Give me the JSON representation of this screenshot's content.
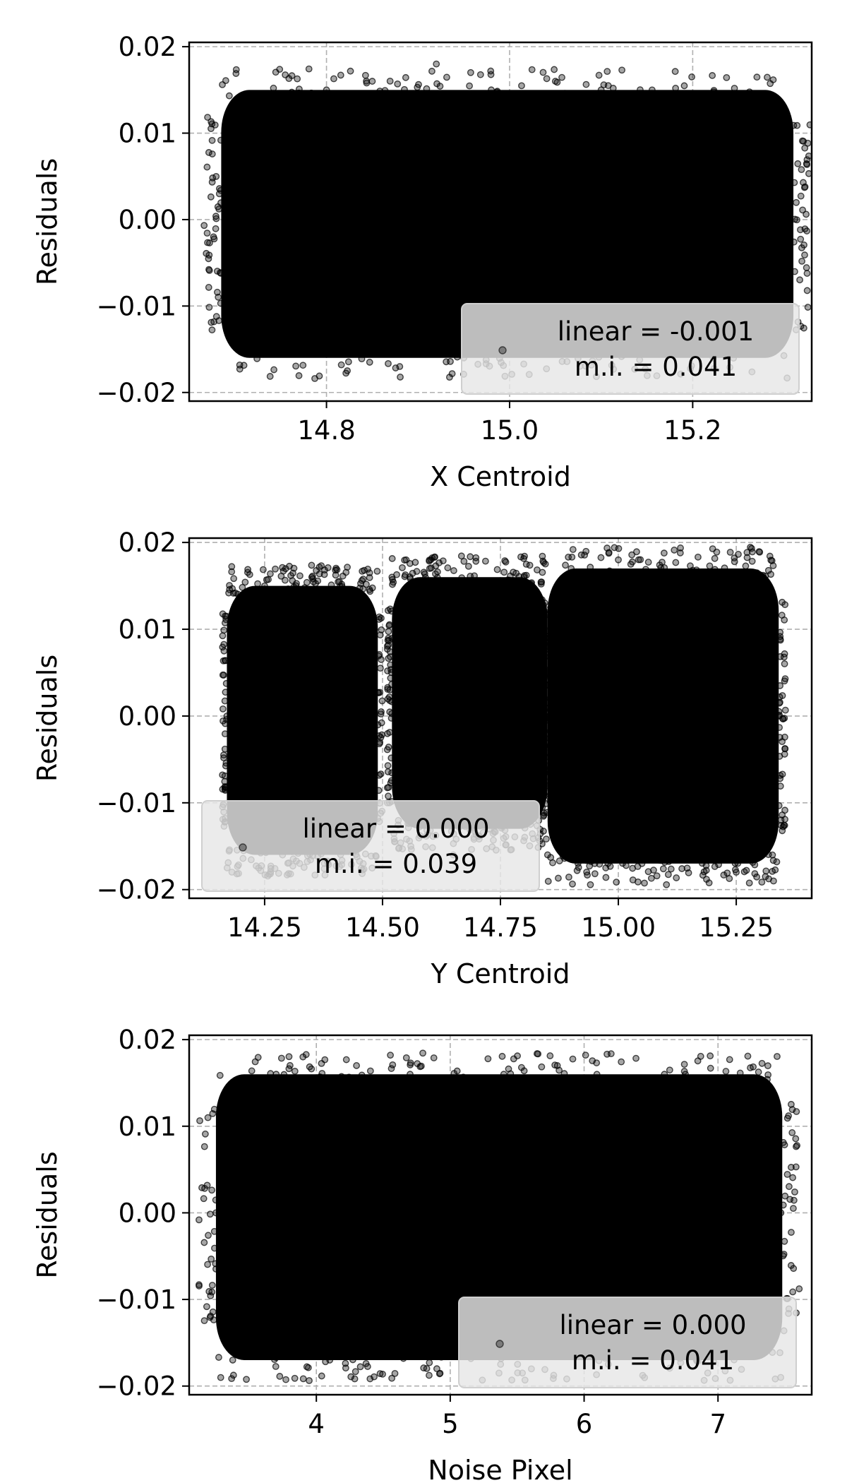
{
  "chart_data": [
    {
      "type": "scatter",
      "xlabel": "X Centroid",
      "ylabel": "Residuals",
      "xlim": [
        14.65,
        15.33
      ],
      "ylim": [
        -0.021,
        0.0205
      ],
      "xticks": [
        14.8,
        15.0,
        15.2
      ],
      "xtick_labels": [
        "14.8",
        "15.0",
        "15.2"
      ],
      "yticks": [
        -0.02,
        -0.01,
        0.0,
        0.01,
        0.02
      ],
      "ytick_labels": [
        "−0.02",
        "−0.01",
        "0.00",
        "0.01",
        "0.02"
      ],
      "grid": true,
      "legend": {
        "placement": "lower-right",
        "lines": [
          "linear = -0.001",
          "m.i. = 0.041"
        ]
      },
      "color": "#000000",
      "series": [
        {
          "x": [
            14.7,
            14.72,
            14.75,
            14.78,
            14.8,
            14.82,
            14.85,
            14.88,
            14.9,
            14.92,
            14.95,
            14.98,
            15.0,
            15.02,
            15.05,
            15.08,
            15.1,
            15.12,
            15.15,
            15.18,
            15.2,
            15.22,
            15.25,
            15.27,
            15.29,
            15.3
          ],
          "y": [
            0.0,
            0.008,
            -0.009,
            0.012,
            0.015,
            -0.014,
            0.016,
            -0.017,
            0.013,
            0.018,
            -0.016,
            0.015,
            0.014,
            -0.015,
            0.016,
            -0.012,
            0.015,
            0.014,
            -0.013,
            0.012,
            0.013,
            -0.01,
            0.014,
            0.006,
            -0.004,
            0.0
          ]
        }
      ]
    },
    {
      "type": "scatter",
      "xlabel": "Y Centroid",
      "ylabel": "Residuals",
      "xlim": [
        14.09,
        15.41
      ],
      "ylim": [
        -0.021,
        0.0205
      ],
      "xticks": [
        14.25,
        14.5,
        14.75,
        15.0,
        15.25
      ],
      "xtick_labels": [
        "14.25",
        "14.50",
        "14.75",
        "15.00",
        "15.25"
      ],
      "yticks": [
        -0.02,
        -0.01,
        0.0,
        0.01,
        0.02
      ],
      "ytick_labels": [
        "−0.02",
        "−0.01",
        "0.00",
        "0.01",
        "0.02"
      ],
      "grid": true,
      "legend": {
        "placement": "lower-left",
        "lines": [
          "linear = 0.000",
          "m.i. = 0.039"
        ]
      },
      "color": "#000000",
      "series": [
        {
          "x": [
            14.17,
            14.2,
            14.25,
            14.3,
            14.35,
            14.4,
            14.45,
            14.52,
            14.56,
            14.6,
            14.65,
            14.7,
            14.75,
            14.8,
            14.85,
            14.9,
            14.95,
            15.0,
            15.05,
            15.1,
            15.15,
            15.2,
            15.25,
            15.3,
            15.34
          ],
          "y": [
            0.0,
            0.01,
            0.015,
            -0.015,
            0.016,
            -0.014,
            0.014,
            0.016,
            -0.015,
            0.017,
            -0.016,
            0.014,
            -0.012,
            0.016,
            -0.016,
            0.017,
            -0.017,
            0.018,
            -0.017,
            0.016,
            -0.016,
            0.015,
            -0.018,
            0.012,
            0.0
          ]
        }
      ]
    },
    {
      "type": "scatter",
      "xlabel": "Noise Pixel",
      "ylabel": "Residuals",
      "xlim": [
        3.05,
        7.7
      ],
      "ylim": [
        -0.021,
        0.0205
      ],
      "xticks": [
        4,
        5,
        6,
        7
      ],
      "xtick_labels": [
        "4",
        "5",
        "6",
        "7"
      ],
      "yticks": [
        -0.02,
        -0.01,
        0.0,
        0.01,
        0.02
      ],
      "ytick_labels": [
        "−0.02",
        "−0.01",
        "0.00",
        "0.01",
        "0.02"
      ],
      "grid": true,
      "legend": {
        "placement": "lower-right",
        "lines": [
          "linear = 0.000",
          "m.i. = 0.041"
        ]
      },
      "color": "#000000",
      "series": [
        {
          "x": [
            3.25,
            3.35,
            3.5,
            3.7,
            3.9,
            4.1,
            4.3,
            4.5,
            4.7,
            4.9,
            5.0,
            5.2,
            5.4,
            5.6,
            5.8,
            6.0,
            6.2,
            6.4,
            6.6,
            6.8,
            7.0,
            7.2,
            7.4,
            7.47
          ],
          "y": [
            0.0,
            0.012,
            -0.015,
            0.016,
            0.018,
            -0.017,
            0.017,
            -0.016,
            0.016,
            -0.018,
            0.015,
            -0.016,
            0.016,
            -0.015,
            0.017,
            -0.016,
            0.015,
            -0.014,
            0.016,
            0.014,
            -0.015,
            0.015,
            -0.01,
            0.0
          ]
        }
      ]
    }
  ]
}
